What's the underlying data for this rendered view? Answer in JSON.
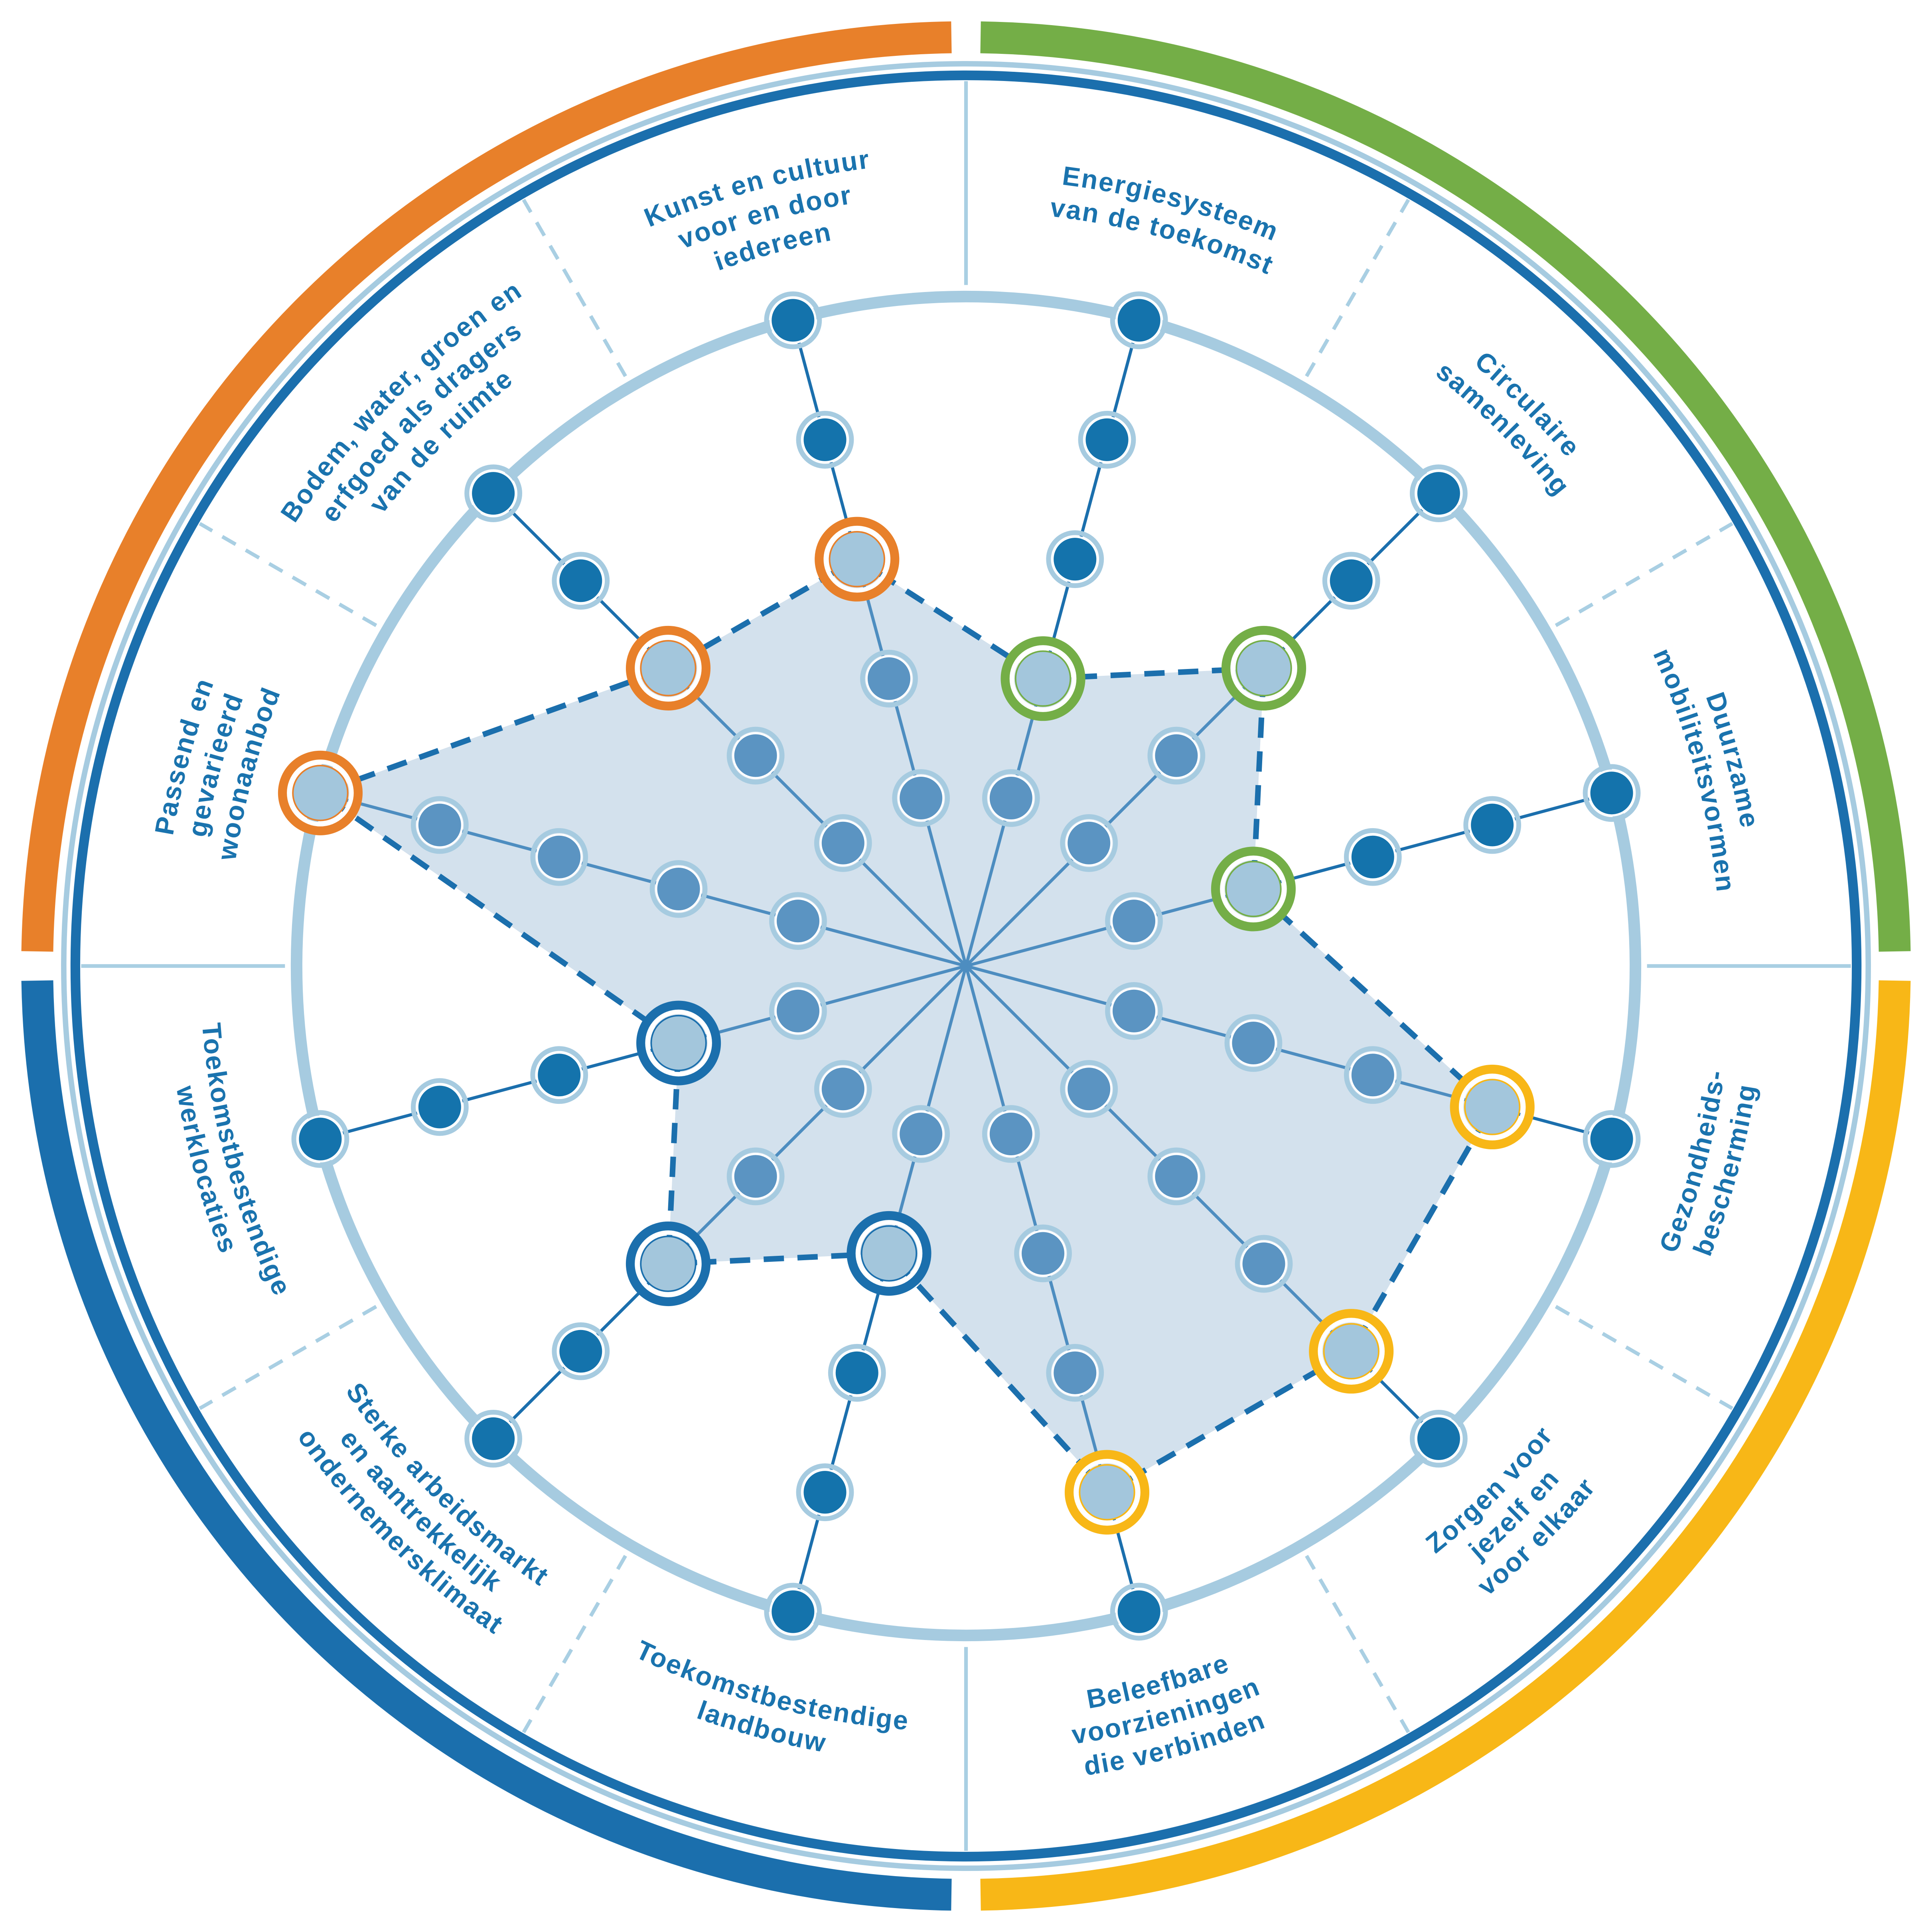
{
  "palette": {
    "orange": "#E8802A",
    "green": "#74AE47",
    "yellow": "#F8B717",
    "blue": "#1B6FAD",
    "light_blue": "#A6CBE0",
    "divider_blue": "#A9CFE3",
    "polygon_fill": "#D3E1ED",
    "polygon_dash": "#1B6FAD",
    "label_text": "#1A73AE",
    "dot_inside_fill": "#5B94C2",
    "dot_outside_fill": "#1473AC",
    "dot_ring": "#A6CBE0",
    "highlight_fill": "#A3C6DC",
    "spoke_inner": "#4D8DC0",
    "spoke_outer": "#1B6FAD",
    "background": "#FFFFFF"
  },
  "chart_data": {
    "type": "radar",
    "scale": {
      "min": 1,
      "max": 5
    },
    "quadrants": [
      {
        "color": "orange",
        "from_deg": 270,
        "to_deg": 360
      },
      {
        "color": "green",
        "from_deg": 0,
        "to_deg": 90
      },
      {
        "color": "yellow",
        "from_deg": 90,
        "to_deg": 180
      },
      {
        "color": "blue",
        "from_deg": 180,
        "to_deg": 270
      }
    ],
    "sectors": [
      {
        "label": "Energiesysteem van de toekomst",
        "label_lines": [
          "Energiesysteem",
          "van de toekomst"
        ],
        "quadrant": "green",
        "value": 2,
        "bearing_deg": 15,
        "flipped": false
      },
      {
        "label": "Circulaire samenleving",
        "label_lines": [
          "Circulaire",
          "samenleving"
        ],
        "quadrant": "green",
        "value": 3,
        "bearing_deg": 45,
        "flipped": false
      },
      {
        "label": "Duurzame mobiliteitsvormen",
        "label_lines": [
          "Duurzame",
          "mobiliteitsvormen"
        ],
        "quadrant": "green",
        "value": 2,
        "bearing_deg": 75,
        "flipped": false
      },
      {
        "label": "Gezondheids-bescherming",
        "label_lines": [
          "Gezondheids-",
          "bescherming"
        ],
        "quadrant": "yellow",
        "value": 4,
        "bearing_deg": 105,
        "flipped": true
      },
      {
        "label": "Zorgen voor jezelf en voor elkaar",
        "label_lines": [
          "Zorgen voor",
          "jezelf en",
          "voor elkaar"
        ],
        "quadrant": "yellow",
        "value": 4,
        "bearing_deg": 135,
        "flipped": true
      },
      {
        "label": "Beleefbare voorzieningen die verbinden",
        "label_lines": [
          "Beleefbare",
          "voorzieningen",
          "die verbinden"
        ],
        "quadrant": "yellow",
        "value": 4,
        "bearing_deg": 165,
        "flipped": true
      },
      {
        "label": "Toekomstbestendige landbouw",
        "label_lines": [
          "Toekomstbestendige",
          "landbouw"
        ],
        "quadrant": "blue",
        "value": 2,
        "bearing_deg": 195,
        "flipped": true
      },
      {
        "label": "Sterke arbeidsmarkt en aantrekkelijk ondernemersklimaat",
        "label_lines": [
          "Sterke arbeidsmarkt",
          "en aantrekkelijk",
          "ondernemersklimaat"
        ],
        "quadrant": "blue",
        "value": 3,
        "bearing_deg": 225,
        "flipped": true
      },
      {
        "label": "Toekomstbestendige werklocaties",
        "label_lines": [
          "Toekomstbestendige",
          "werklocaties"
        ],
        "quadrant": "blue",
        "value": 2,
        "bearing_deg": 255,
        "flipped": true
      },
      {
        "label": "Passend en gevarieerd woonaanbod",
        "label_lines": [
          "Passend en",
          "gevarieerd",
          "woonaanbod"
        ],
        "quadrant": "orange",
        "value": 5,
        "bearing_deg": 285,
        "flipped": false
      },
      {
        "label": "Bodem, water, groen en erfgoed als dragers van de ruimte",
        "label_lines": [
          "Bodem, water, groen en",
          "erfgoed als dragers",
          "van de ruimte"
        ],
        "quadrant": "orange",
        "value": 3,
        "bearing_deg": 315,
        "flipped": false
      },
      {
        "label": "Kunst en cultuur voor en door iedereen",
        "label_lines": [
          "Kunst en cultuur",
          "voor en door",
          "iedereen"
        ],
        "quadrant": "orange",
        "value": 3,
        "bearing_deg": 345,
        "flipped": false
      }
    ]
  }
}
